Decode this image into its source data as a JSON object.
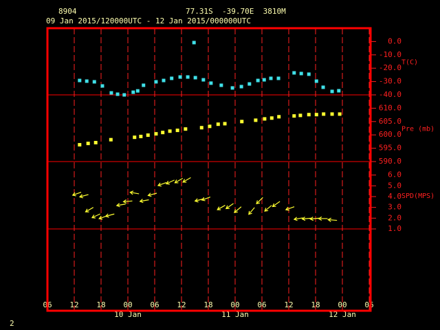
{
  "header": {
    "station": "8904",
    "location": "77.31S  -39.70E  3810M",
    "period": "09 Jan 2015/120000UTC - 12 Jan 2015/000000UTC"
  },
  "page_number": "2",
  "x_axis": {
    "xlim": [
      0,
      72
    ],
    "xticks": [
      {
        "value": 0,
        "label": "06"
      },
      {
        "value": 6,
        "label": "12"
      },
      {
        "value": 12,
        "label": "18"
      },
      {
        "value": 18,
        "label": "00"
      },
      {
        "value": 24,
        "label": "06"
      },
      {
        "value": 30,
        "label": "12"
      },
      {
        "value": 36,
        "label": "18"
      },
      {
        "value": 42,
        "label": "00"
      },
      {
        "value": 48,
        "label": "06"
      },
      {
        "value": 54,
        "label": "12"
      },
      {
        "value": 60,
        "label": "18"
      },
      {
        "value": 66,
        "label": "00"
      },
      {
        "value": 72,
        "label": "06"
      }
    ],
    "day_labels": [
      {
        "value": 18,
        "label": "10 Jan"
      },
      {
        "value": 42,
        "label": "11 Jan"
      },
      {
        "value": 66,
        "label": "12 Jan"
      }
    ]
  },
  "chart_data": [
    {
      "type": "scatter",
      "axis_label": "T(C)",
      "color": "#40e0e8",
      "ylim": [
        -40,
        10
      ],
      "yticks": [
        {
          "value": 0,
          "label": "0.0"
        },
        {
          "value": -10,
          "label": "-10.0"
        },
        {
          "value": -20,
          "label": "-20.0"
        },
        {
          "value": -30,
          "label": "-30.0"
        },
        {
          "value": -40,
          "label": "-40.0"
        }
      ],
      "x": [
        7.2,
        8.8,
        10.5,
        12.3,
        14.3,
        15.7,
        17.2,
        19.2,
        20.2,
        21.5,
        24.3,
        26,
        27.8,
        29.7,
        31.4,
        32.8,
        33.1,
        34.9,
        36.6,
        38.9,
        41.4,
        43.4,
        45.2,
        47.1,
        48.5,
        50,
        51.7,
        55.2,
        56.8,
        58.5,
        60.2,
        61.7,
        63.7,
        65.2
      ],
      "values": [
        -29.2,
        -29.7,
        -30.2,
        -33.3,
        -38.5,
        -39.5,
        -40,
        -38,
        -37,
        -32.8,
        -30.2,
        -29.2,
        -27.6,
        -26.6,
        -26.6,
        -0.8,
        -27.1,
        -28.7,
        -31.2,
        -32.8,
        -34.8,
        -33.8,
        -31.8,
        -29.2,
        -28.7,
        -27.6,
        -27.6,
        -23.5,
        -24,
        -24.5,
        -29.7,
        -34.3,
        -37.4,
        -36.9
      ]
    },
    {
      "type": "scatter",
      "axis_label": "Pre (mb)",
      "color": "#ffff30",
      "ylim": [
        590,
        615
      ],
      "yticks": [
        {
          "value": 610,
          "label": "610.0"
        },
        {
          "value": 605,
          "label": "605.0"
        },
        {
          "value": 600,
          "label": "600.0"
        },
        {
          "value": 595,
          "label": "595.0"
        },
        {
          "value": 590,
          "label": "590.0"
        }
      ],
      "x": [
        7.2,
        9.1,
        10.8,
        14.2,
        19.5,
        20.9,
        22.5,
        24.3,
        25.8,
        27.4,
        29.1,
        30.9,
        34.5,
        36.3,
        38.2,
        39.7,
        43.5,
        46.6,
        48.6,
        50.2,
        51.8,
        55.2,
        56.6,
        58.5,
        60.2,
        61.8,
        63.7,
        65.4
      ],
      "values": [
        596.3,
        596.8,
        597.1,
        598.2,
        599.1,
        599.4,
        599.9,
        600.4,
        600.9,
        601.4,
        601.7,
        602.2,
        602.7,
        603.2,
        604,
        604.2,
        605,
        605.5,
        606,
        606.3,
        606.8,
        607.1,
        607.3,
        607.6,
        607.6,
        607.8,
        607.8,
        607.8
      ]
    },
    {
      "type": "wind",
      "axis_label": "SPD(MPS)",
      "color": "#ffff30",
      "ylim": [
        1,
        7.25
      ],
      "yticks": [
        {
          "value": 6,
          "label": "6.0"
        },
        {
          "value": 5,
          "label": "5.0"
        },
        {
          "value": 4,
          "label": "4.0"
        },
        {
          "value": 3,
          "label": "3.0"
        },
        {
          "value": 2,
          "label": "2.0"
        },
        {
          "value": 1,
          "label": "1.0"
        }
      ],
      "x": [
        6.6,
        8.2,
        9.4,
        10.9,
        12.5,
        14,
        16.5,
        18,
        19.5,
        21.7,
        23.5,
        25.7,
        27.5,
        29.4,
        31.2,
        34,
        35.5,
        38.9,
        40.8,
        42.6,
        45.7,
        47.5,
        49.4,
        51.2,
        54.3,
        56.2,
        58,
        59.8,
        61.7,
        63.8
      ],
      "values": [
        4.27,
        4.08,
        2.79,
        2.22,
        2.09,
        2.28,
        3.24,
        3.56,
        4.33,
        3.63,
        4.21,
        5.17,
        5.36,
        5.49,
        5.55,
        3.69,
        3.82,
        2.99,
        3.12,
        2.79,
        2.67,
        3.63,
        2.92,
        3.31,
        2.92,
        1.96,
        1.96,
        1.96,
        1.96,
        1.83
      ],
      "directions": [
        70,
        75,
        60,
        65,
        70,
        75,
        80,
        85,
        100,
        80,
        75,
        70,
        65,
        60,
        60,
        75,
        70,
        60,
        55,
        50,
        40,
        45,
        50,
        55,
        70,
        80,
        85,
        85,
        90,
        95
      ]
    }
  ]
}
